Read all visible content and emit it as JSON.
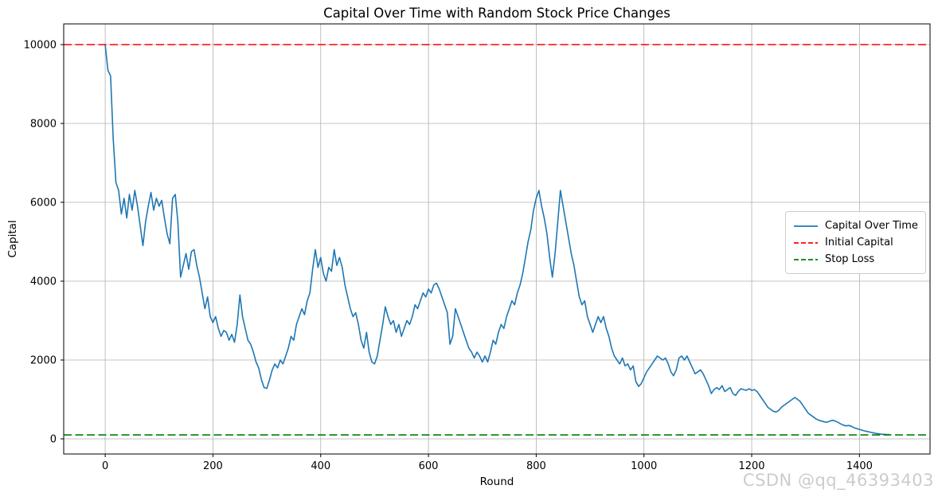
{
  "watermark": "CSDN @qq_46393403",
  "chart_data": {
    "type": "line",
    "title": "Capital Over Time with Random Stock Price Changes",
    "xlabel": "Round",
    "ylabel": "Capital",
    "grid": true,
    "legend_position": "center right",
    "xlim": [
      -77,
      1531
    ],
    "ylim": [
      -384,
      10525
    ],
    "x_ticks": [
      0,
      200,
      400,
      600,
      800,
      1000,
      1200,
      1400
    ],
    "y_ticks": [
      0,
      2000,
      4000,
      6000,
      8000,
      10000
    ],
    "colors": {
      "capital_line": "#1f77b4",
      "initial_capital_line": "#ff0000",
      "stop_loss_line": "#008000",
      "grid": "#b0b0b0",
      "spine": "#000000",
      "watermark": "#cccccc"
    },
    "series": [
      {
        "name": "Capital Over Time",
        "color": "#1f77b4",
        "style": "solid",
        "x_start": 0,
        "x_step": 5,
        "values": [
          10000,
          9350,
          9200,
          7600,
          6500,
          6300,
          5700,
          6100,
          5600,
          6200,
          5800,
          6300,
          5900,
          5400,
          4900,
          5500,
          5900,
          6250,
          5800,
          6100,
          5900,
          6050,
          5600,
          5200,
          4950,
          6100,
          6200,
          5500,
          4100,
          4400,
          4700,
          4300,
          4750,
          4800,
          4400,
          4100,
          3700,
          3300,
          3600,
          3100,
          2950,
          3100,
          2800,
          2600,
          2750,
          2700,
          2500,
          2650,
          2450,
          2900,
          3650,
          3100,
          2800,
          2500,
          2400,
          2200,
          1950,
          1800,
          1500,
          1300,
          1280,
          1500,
          1750,
          1900,
          1800,
          2000,
          1900,
          2100,
          2300,
          2600,
          2500,
          2900,
          3100,
          3300,
          3150,
          3500,
          3700,
          4300,
          4800,
          4350,
          4600,
          4200,
          4000,
          4350,
          4250,
          4800,
          4400,
          4600,
          4350,
          3900,
          3600,
          3300,
          3100,
          3200,
          2900,
          2500,
          2300,
          2700,
          2200,
          1950,
          1900,
          2100,
          2500,
          2900,
          3350,
          3100,
          2900,
          3000,
          2700,
          2900,
          2600,
          2800,
          3000,
          2900,
          3100,
          3400,
          3300,
          3500,
          3700,
          3600,
          3800,
          3700,
          3900,
          3950,
          3800,
          3600,
          3400,
          3200,
          2400,
          2600,
          3300,
          3100,
          2900,
          2700,
          2500,
          2300,
          2200,
          2050,
          2200,
          2100,
          1950,
          2100,
          1950,
          2200,
          2500,
          2400,
          2700,
          2900,
          2800,
          3100,
          3300,
          3500,
          3400,
          3700,
          3900,
          4200,
          4600,
          5000,
          5300,
          5800,
          6100,
          6300,
          5900,
          5600,
          5200,
          4600,
          4100,
          4700,
          5500,
          6300,
          5900,
          5500,
          5100,
          4700,
          4400,
          4000,
          3600,
          3400,
          3500,
          3100,
          2900,
          2700,
          2900,
          3100,
          2950,
          3100,
          2800,
          2600,
          2300,
          2100,
          2000,
          1900,
          2050,
          1850,
          1900,
          1750,
          1850,
          1450,
          1330,
          1400,
          1550,
          1700,
          1800,
          1900,
          2000,
          2100,
          2050,
          2000,
          2050,
          1900,
          1700,
          1600,
          1750,
          2050,
          2100,
          2000,
          2100,
          1950,
          1800,
          1650,
          1700,
          1750,
          1650,
          1500,
          1350,
          1150,
          1250,
          1300,
          1250,
          1350,
          1200,
          1250,
          1300,
          1150,
          1100,
          1200,
          1270,
          1250,
          1230,
          1270,
          1230,
          1250,
          1200,
          1100,
          1000,
          900,
          800,
          750,
          700,
          680,
          720,
          800,
          850,
          900,
          950,
          1000,
          1050,
          1000,
          950,
          850,
          750,
          650,
          600,
          550,
          500,
          470,
          450,
          430,
          420,
          450,
          470,
          450,
          420,
          380,
          350,
          330,
          340,
          320,
          280,
          260,
          240,
          220,
          200,
          185,
          170,
          155,
          140,
          130,
          120,
          115,
          110,
          108
        ]
      },
      {
        "name": "Initial Capital",
        "color": "#ff0000",
        "style": "dashed",
        "value": 10000
      },
      {
        "name": "Stop Loss",
        "color": "#008000",
        "style": "dashed",
        "value": 100
      }
    ]
  }
}
